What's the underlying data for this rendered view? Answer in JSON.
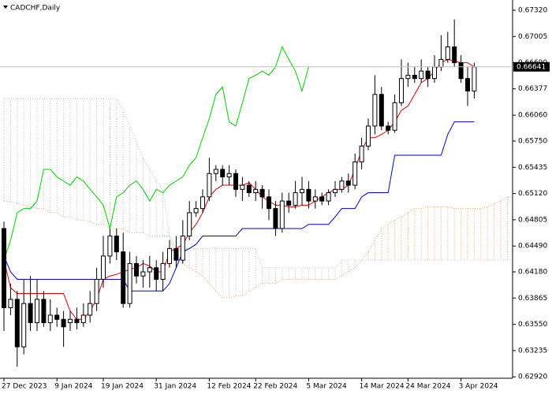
{
  "chart_data": {
    "type": "candlestick",
    "title": "CADCHF,Daily",
    "categories": [
      "27 Dec 2023",
      null,
      null,
      null,
      null,
      null,
      null,
      null,
      "9 Jan 2024",
      null,
      null,
      null,
      null,
      null,
      null,
      "19 Jan 2024",
      null,
      null,
      null,
      null,
      null,
      null,
      null,
      "31 Jan 2024",
      null,
      null,
      null,
      null,
      null,
      null,
      null,
      "12 Feb 2024",
      null,
      null,
      null,
      null,
      null,
      null,
      "22 Feb 2024",
      null,
      null,
      null,
      null,
      null,
      null,
      null,
      "5 Mar 2024",
      null,
      null,
      null,
      null,
      null,
      null,
      null,
      "14 Mar 2024",
      null,
      null,
      null,
      null,
      null,
      null,
      "24 Mar 2024",
      null,
      null,
      null,
      null,
      null,
      null,
      null,
      "3 Apr 2024",
      null,
      null,
      null,
      null,
      null,
      null,
      null,
      null
    ],
    "open": [
      0.647,
      0.6375,
      0.6385,
      0.6328,
      0.638,
      0.6357,
      0.6385,
      0.6357,
      0.6366,
      0.6361,
      0.6357,
      0.6361,
      0.6357,
      0.6366,
      0.638,
      0.6409,
      0.6437,
      0.6461,
      0.6442,
      0.638,
      0.6428,
      0.6413,
      0.6418,
      0.6423,
      0.6409,
      0.6428,
      0.6446,
      0.6432,
      0.6461,
      0.6489,
      0.6494,
      0.6508,
      0.6536,
      0.6541,
      0.6532,
      0.6536,
      0.6517,
      0.6522,
      0.6513,
      0.6517,
      0.6508,
      0.6494,
      0.647,
      0.6503,
      0.6498,
      0.6513,
      0.6517,
      0.6503,
      0.6508,
      0.6503,
      0.6513,
      0.6517,
      0.6527,
      0.6522,
      0.655,
      0.6569,
      0.6593,
      0.6631,
      0.6593,
      0.6588,
      0.6621,
      0.665,
      0.6654,
      0.665,
      0.6659,
      0.665,
      0.6664,
      0.6673,
      0.6688,
      0.6669,
      0.665,
      0.6635,
      null,
      null,
      null,
      null,
      null,
      null
    ],
    "high": [
      0.6478,
      0.6404,
      0.6395,
      0.6409,
      0.6413,
      0.6409,
      0.6395,
      0.6385,
      0.6375,
      0.6371,
      0.6371,
      0.6375,
      0.638,
      0.6395,
      0.6423,
      0.6461,
      0.647,
      0.647,
      0.6465,
      0.6442,
      0.6437,
      0.6432,
      0.6437,
      0.6432,
      0.6442,
      0.6456,
      0.6461,
      0.648,
      0.6503,
      0.6503,
      0.6517,
      0.6555,
      0.6546,
      0.6546,
      0.6546,
      0.6541,
      0.6532,
      0.6527,
      0.6527,
      0.6522,
      0.6517,
      0.6503,
      0.6513,
      0.6513,
      0.6527,
      0.6532,
      0.6527,
      0.6517,
      0.6513,
      0.6517,
      0.6527,
      0.6532,
      0.6536,
      0.656,
      0.6579,
      0.6602,
      0.6654,
      0.664,
      0.6598,
      0.6631,
      0.6673,
      0.6669,
      0.6664,
      0.6673,
      0.6664,
      0.6678,
      0.6702,
      0.6706,
      0.6721,
      0.6678,
      0.6664,
      0.6669,
      null,
      null,
      null,
      null,
      null,
      null
    ],
    "low": [
      0.6347,
      0.6366,
      0.6304,
      0.6319,
      0.6347,
      0.6347,
      0.6352,
      0.6347,
      0.6352,
      0.6328,
      0.6347,
      0.6349,
      0.6352,
      0.6357,
      0.6371,
      0.6399,
      0.6428,
      0.6432,
      0.6375,
      0.6375,
      0.6404,
      0.6399,
      0.6399,
      0.6395,
      0.6395,
      0.6423,
      0.6423,
      0.6428,
      0.6456,
      0.6484,
      0.6489,
      0.6503,
      0.6527,
      0.6522,
      0.6522,
      0.6508,
      0.6503,
      0.6508,
      0.6503,
      0.6494,
      0.648,
      0.6461,
      0.6465,
      0.6489,
      0.6494,
      0.6498,
      0.6494,
      0.6494,
      0.6498,
      0.6498,
      0.6508,
      0.6513,
      0.6513,
      0.6517,
      0.6541,
      0.6564,
      0.6583,
      0.6588,
      0.6583,
      0.6585,
      0.6617,
      0.664,
      0.6645,
      0.6645,
      0.664,
      0.6645,
      0.6659,
      0.6669,
      0.6664,
      0.6645,
      0.6617,
      0.6626,
      null,
      null,
      null,
      null,
      null,
      null
    ],
    "close": [
      0.6375,
      0.6385,
      0.6328,
      0.638,
      0.6357,
      0.6385,
      0.6357,
      0.6366,
      0.6361,
      0.6352,
      0.6361,
      0.6357,
      0.6366,
      0.638,
      0.6409,
      0.6437,
      0.6461,
      0.6442,
      0.638,
      0.6428,
      0.6413,
      0.6418,
      0.6423,
      0.6409,
      0.6428,
      0.6446,
      0.6432,
      0.6461,
      0.6489,
      0.6494,
      0.6508,
      0.6536,
      0.6541,
      0.6532,
      0.6536,
      0.6517,
      0.6522,
      0.6513,
      0.6517,
      0.6508,
      0.6494,
      0.647,
      0.6503,
      0.6498,
      0.6513,
      0.6517,
      0.6503,
      0.6508,
      0.6503,
      0.6513,
      0.6517,
      0.6527,
      0.6522,
      0.655,
      0.6569,
      0.6593,
      0.6631,
      0.6593,
      0.6588,
      0.6621,
      0.665,
      0.6654,
      0.665,
      0.6659,
      0.665,
      0.6664,
      0.6673,
      0.6688,
      0.6669,
      0.665,
      0.6635,
      0.6664,
      null,
      null,
      null,
      null,
      null,
      null
    ],
    "lines": [
      {
        "color": "#e00000",
        "values": [
          0.6432,
          0.6399,
          0.6392,
          0.6392,
          0.6392,
          0.6392,
          0.6392,
          0.6392,
          0.6392,
          0.6392,
          0.6371,
          0.6361,
          0.6361,
          0.6371,
          0.6385,
          0.6409,
          0.6413,
          0.6415,
          0.6418,
          0.6421,
          0.6423,
          0.6428,
          0.6425,
          0.6418,
          0.6418,
          0.6442,
          0.6446,
          0.6451,
          0.6465,
          0.6475,
          0.6489,
          0.6508,
          0.6517,
          0.6522,
          0.6522,
          0.6522,
          0.6522,
          0.6525,
          0.6517,
          0.6508,
          0.6503,
          0.6498,
          0.6498,
          0.6496,
          0.6496,
          0.6498,
          0.6498,
          0.6503,
          0.6508,
          0.6513,
          0.6517,
          0.6517,
          0.6522,
          0.6541,
          0.6564,
          0.6579,
          0.6579,
          0.6583,
          0.6588,
          0.6598,
          0.6612,
          0.6617,
          0.6631,
          0.6645,
          0.665,
          0.6659,
          0.6669,
          0.6673,
          0.6671,
          0.6669,
          0.6669,
          0.6664,
          null,
          null,
          null,
          null,
          null,
          null
        ]
      },
      {
        "color": "#0000d0",
        "values": [
          0.6437,
          0.6418,
          0.6409,
          0.6409,
          0.6409,
          0.6409,
          0.6409,
          0.6409,
          0.6409,
          0.6409,
          0.6409,
          0.6409,
          0.6409,
          0.6409,
          0.6409,
          0.6409,
          0.6409,
          0.6409,
          0.6409,
          0.6395,
          0.6395,
          0.6395,
          0.6395,
          0.6395,
          0.6395,
          0.6404,
          0.6423,
          0.6442,
          0.6446,
          0.6451,
          0.6461,
          0.6461,
          0.6461,
          0.6461,
          0.6461,
          0.6461,
          0.647,
          0.647,
          0.647,
          0.647,
          0.647,
          0.647,
          0.647,
          0.647,
          0.647,
          0.647,
          0.6475,
          0.6475,
          0.6475,
          0.6475,
          0.6484,
          0.6494,
          0.6494,
          0.6494,
          0.6508,
          0.6513,
          0.6513,
          0.6513,
          0.6513,
          0.6558,
          0.6558,
          0.6558,
          0.6558,
          0.6558,
          0.6558,
          0.6558,
          0.6558,
          0.6583,
          0.6598,
          0.6598,
          0.6598,
          0.6598,
          null,
          null,
          null,
          null,
          null,
          null
        ]
      },
      {
        "color": "#00d000",
        "values": [
          0.6432,
          0.6456,
          0.6489,
          0.6494,
          0.6494,
          0.6503,
          0.6541,
          0.6541,
          0.6532,
          0.6527,
          0.6522,
          0.6532,
          0.6527,
          0.6517,
          0.6508,
          0.6498,
          0.647,
          0.6508,
          0.6513,
          0.6522,
          0.6527,
          0.6517,
          0.6503,
          0.6517,
          0.6513,
          0.6522,
          0.6527,
          0.6532,
          0.6546,
          0.6555,
          0.6579,
          0.6602,
          0.6631,
          0.664,
          0.6598,
          0.6593,
          0.6621,
          0.665,
          0.6654,
          0.6659,
          0.6654,
          0.6664,
          0.6688,
          0.6673,
          0.6659,
          0.6635,
          0.6664,
          null,
          null,
          null,
          null,
          null,
          null,
          null,
          null,
          null,
          null,
          null,
          null,
          null,
          null,
          null,
          null,
          null,
          null,
          null,
          null,
          null,
          null,
          null,
          null,
          null,
          null,
          null,
          null,
          null,
          null,
          null
        ]
      }
    ],
    "cloud": {
      "up_color": "#f4a460",
      "down_color": "#bebebe",
      "span_a": [
        0.6503,
        0.6502,
        0.65,
        0.6498,
        0.6496,
        0.6494,
        0.6494,
        0.6489,
        0.6489,
        0.6484,
        0.6484,
        0.648,
        0.648,
        0.6478,
        0.6475,
        0.6475,
        0.647,
        0.647,
        0.647,
        0.6465,
        0.6465,
        0.6465,
        0.6461,
        0.6461,
        0.6461,
        0.6461,
        0.6432,
        0.6428,
        0.6423,
        0.6418,
        0.6413,
        0.6404,
        0.6395,
        0.6387,
        0.6387,
        0.6389,
        0.6389,
        0.6395,
        0.6399,
        0.6404,
        0.6404,
        0.6404,
        0.6409,
        0.6409,
        0.6409,
        0.6409,
        0.6409,
        0.6409,
        0.6409,
        0.6409,
        0.6409,
        0.6413,
        0.6418,
        0.6423,
        0.6432,
        0.6442,
        0.6456,
        0.647,
        0.6475,
        0.648,
        0.6484,
        0.6489,
        0.6494,
        0.6494,
        0.6496,
        0.6496,
        0.6496,
        0.6496,
        0.6494,
        0.6494,
        0.6494,
        0.6494,
        0.6494,
        0.6496,
        0.65,
        0.6503,
        0.6508,
        0.6508
      ],
      "span_b": [
        0.6626,
        0.6626,
        0.6626,
        0.6626,
        0.6626,
        0.6626,
        0.6626,
        0.6626,
        0.6626,
        0.6626,
        0.6626,
        0.6626,
        0.6626,
        0.6626,
        0.6626,
        0.6626,
        0.6626,
        0.6626,
        0.6612,
        0.6593,
        0.6574,
        0.6555,
        0.6541,
        0.6527,
        0.6517,
        0.6461,
        0.6446,
        0.6446,
        0.6446,
        0.6446,
        0.6446,
        0.6446,
        0.6446,
        0.6446,
        0.6446,
        0.6446,
        0.6446,
        0.6446,
        0.6446,
        0.6423,
        0.6423,
        0.6423,
        0.6423,
        0.6423,
        0.6423,
        0.6423,
        0.6423,
        0.6423,
        0.6423,
        0.6423,
        0.6423,
        0.6432,
        0.6432,
        0.6432,
        0.6432,
        0.6432,
        0.6432,
        0.6432,
        0.6432,
        0.6432,
        0.6432,
        0.6432,
        0.6432,
        0.6432,
        0.6432,
        0.6432,
        0.6432,
        0.6432,
        0.6432,
        0.6432,
        0.6432,
        0.6432,
        0.6432,
        0.6432,
        0.6432,
        0.6432,
        0.6432,
        0.6432
      ]
    },
    "last_price": 0.66641,
    "ylim": [
      0.62903,
      0.67443
    ],
    "yticks": [
      {
        "value": 0.6732,
        "label": "0.67320"
      },
      {
        "value": 0.67005,
        "label": "0.67005"
      },
      {
        "value": 0.6669,
        "label": "0.66690"
      },
      {
        "value": 0.66377,
        "label": "0.66377"
      },
      {
        "value": 0.6606,
        "label": "0.66060"
      },
      {
        "value": 0.6575,
        "label": "0.65750"
      },
      {
        "value": 0.65435,
        "label": "0.65435"
      },
      {
        "value": 0.6512,
        "label": "0.65120"
      },
      {
        "value": 0.64805,
        "label": "0.64805"
      },
      {
        "value": 0.6449,
        "label": "0.64490"
      },
      {
        "value": 0.6418,
        "label": "0.64180"
      },
      {
        "value": 0.63865,
        "label": "0.63865"
      },
      {
        "value": 0.6355,
        "label": "0.63550"
      },
      {
        "value": 0.63235,
        "label": "0.63235"
      },
      {
        "value": 0.6292,
        "label": "0.62920"
      }
    ]
  }
}
